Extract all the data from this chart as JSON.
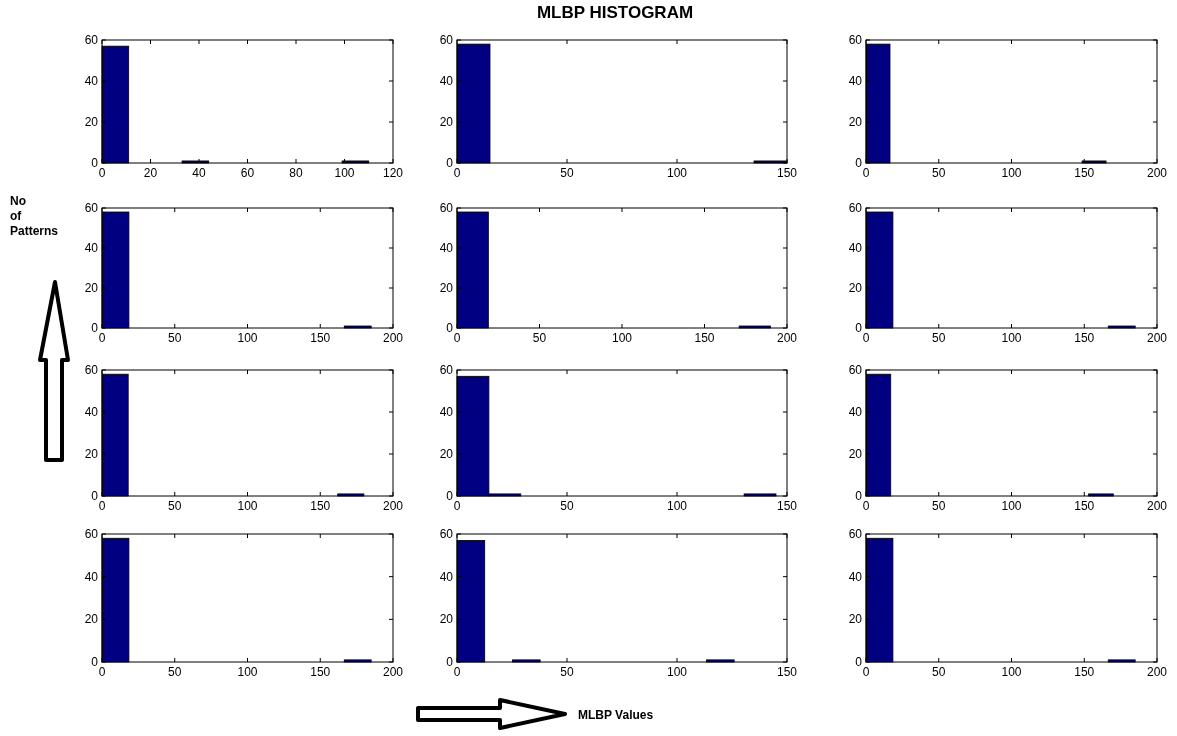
{
  "chart_data": [
    {
      "type": "histogram",
      "bins": [
        0,
        11,
        22,
        33,
        44,
        55,
        66,
        77,
        88,
        99,
        110
      ],
      "values": [
        57,
        0,
        0,
        1,
        0,
        0,
        0,
        0,
        0,
        1
      ],
      "color": "#000080",
      "xlim": [
        0,
        120
      ],
      "xticks": [
        0,
        20,
        40,
        60,
        80,
        100,
        120
      ],
      "ylim": [
        0,
        60
      ],
      "yticks": [
        0,
        20,
        40,
        60
      ],
      "grid": false
    },
    {
      "type": "histogram",
      "title": "MLBP HISTOGRAM",
      "bins": [
        0,
        15,
        30,
        45,
        60,
        75,
        90,
        105,
        120,
        135,
        150
      ],
      "values": [
        58,
        0,
        0,
        0,
        0,
        0,
        0,
        0,
        0,
        1
      ],
      "color": "#000080",
      "xlim": [
        0,
        150
      ],
      "xticks": [
        0,
        50,
        100,
        150
      ],
      "ylim": [
        0,
        60
      ],
      "yticks": [
        0,
        20,
        40,
        60
      ],
      "grid": false
    },
    {
      "type": "histogram",
      "bins": [
        0,
        16.5,
        33,
        49.5,
        66,
        82.5,
        99,
        115.5,
        132,
        148.5,
        165
      ],
      "values": [
        58,
        0,
        0,
        0,
        0,
        0,
        0,
        0,
        0,
        1
      ],
      "color": "#000080",
      "xlim": [
        0,
        200
      ],
      "xticks": [
        0,
        50,
        100,
        150,
        200
      ],
      "ylim": [
        0,
        60
      ],
      "yticks": [
        0,
        20,
        40,
        60
      ],
      "grid": false
    },
    {
      "type": "histogram",
      "ylabel": "No of Patterns",
      "bins": [
        0,
        18.5,
        37,
        55.5,
        74,
        92.5,
        111,
        129.5,
        148,
        166.5,
        185
      ],
      "values": [
        58,
        0,
        0,
        0,
        0,
        0,
        0,
        0,
        0,
        1
      ],
      "color": "#000080",
      "xlim": [
        0,
        200
      ],
      "xticks": [
        0,
        50,
        100,
        150,
        200
      ],
      "ylim": [
        0,
        60
      ],
      "yticks": [
        0,
        20,
        40,
        60
      ],
      "grid": false
    },
    {
      "type": "histogram",
      "bins": [
        0,
        19,
        38,
        57,
        76,
        95,
        114,
        133,
        152,
        171,
        190
      ],
      "values": [
        58,
        0,
        0,
        0,
        0,
        0,
        0,
        0,
        0,
        1
      ],
      "color": "#000080",
      "xlim": [
        0,
        200
      ],
      "xticks": [
        0,
        50,
        100,
        150,
        200
      ],
      "ylim": [
        0,
        60
      ],
      "yticks": [
        0,
        20,
        40,
        60
      ],
      "grid": false
    },
    {
      "type": "histogram",
      "bins": [
        0,
        18.5,
        37,
        55.5,
        74,
        92.5,
        111,
        129.5,
        148,
        166.5,
        185
      ],
      "values": [
        58,
        0,
        0,
        0,
        0,
        0,
        0,
        0,
        0,
        1
      ],
      "color": "#000080",
      "xlim": [
        0,
        200
      ],
      "xticks": [
        0,
        50,
        100,
        150,
        200
      ],
      "ylim": [
        0,
        60
      ],
      "yticks": [
        0,
        20,
        40,
        60
      ],
      "grid": false
    },
    {
      "type": "histogram",
      "bins": [
        0,
        18,
        36,
        54,
        72,
        90,
        108,
        126,
        144,
        162,
        180
      ],
      "values": [
        58,
        0,
        0,
        0,
        0,
        0,
        0,
        0,
        0,
        1
      ],
      "color": "#000080",
      "xlim": [
        0,
        200
      ],
      "xticks": [
        0,
        50,
        100,
        150,
        200
      ],
      "ylim": [
        0,
        60
      ],
      "yticks": [
        0,
        20,
        40,
        60
      ],
      "grid": false
    },
    {
      "type": "histogram",
      "bins": [
        0,
        14.5,
        29,
        43.5,
        58,
        72.5,
        87,
        101.5,
        116,
        130.5,
        145
      ],
      "values": [
        57,
        1,
        0,
        0,
        0,
        0,
        0,
        0,
        0,
        1
      ],
      "color": "#000080",
      "xlim": [
        0,
        150
      ],
      "xticks": [
        0,
        50,
        100,
        150
      ],
      "ylim": [
        0,
        60
      ],
      "yticks": [
        0,
        20,
        40,
        60
      ],
      "grid": false
    },
    {
      "type": "histogram",
      "bins": [
        0,
        17,
        34,
        51,
        68,
        85,
        102,
        119,
        136,
        153,
        170
      ],
      "values": [
        58,
        0,
        0,
        0,
        0,
        0,
        0,
        0,
        0,
        1
      ],
      "color": "#000080",
      "xlim": [
        0,
        200
      ],
      "xticks": [
        0,
        50,
        100,
        150,
        200
      ],
      "ylim": [
        0,
        60
      ],
      "yticks": [
        0,
        20,
        40,
        60
      ],
      "grid": false
    },
    {
      "type": "histogram",
      "bins": [
        0,
        18.5,
        37,
        55.5,
        74,
        92.5,
        111,
        129.5,
        148,
        166.5,
        185
      ],
      "values": [
        58,
        0,
        0,
        0,
        0,
        0,
        0,
        0,
        0,
        1
      ],
      "color": "#000080",
      "xlim": [
        0,
        200
      ],
      "xticks": [
        0,
        50,
        100,
        150,
        200
      ],
      "ylim": [
        0,
        60
      ],
      "yticks": [
        0,
        20,
        40,
        60
      ],
      "grid": false
    },
    {
      "type": "histogram",
      "xlabel": "MLBP Values",
      "bins": [
        0,
        12.6,
        25.2,
        37.8,
        50.4,
        63,
        75.6,
        88.2,
        100.8,
        113.4,
        126
      ],
      "values": [
        57,
        0,
        1,
        0,
        0,
        0,
        0,
        0,
        0,
        1
      ],
      "color": "#000080",
      "xlim": [
        0,
        150
      ],
      "xticks": [
        0,
        50,
        100,
        150
      ],
      "ylim": [
        0,
        60
      ],
      "yticks": [
        0,
        20,
        40,
        60
      ],
      "grid": false
    },
    {
      "type": "histogram",
      "bins": [
        0,
        18.5,
        37,
        55.5,
        74,
        92.5,
        111,
        129.5,
        148,
        166.5,
        185
      ],
      "values": [
        58,
        0,
        0,
        0,
        0,
        0,
        0,
        0,
        0,
        1
      ],
      "color": "#000080",
      "xlim": [
        0,
        200
      ],
      "xticks": [
        0,
        50,
        100,
        150,
        200
      ],
      "ylim": [
        0,
        60
      ],
      "yticks": [
        0,
        20,
        40,
        60
      ],
      "grid": false
    }
  ]
}
